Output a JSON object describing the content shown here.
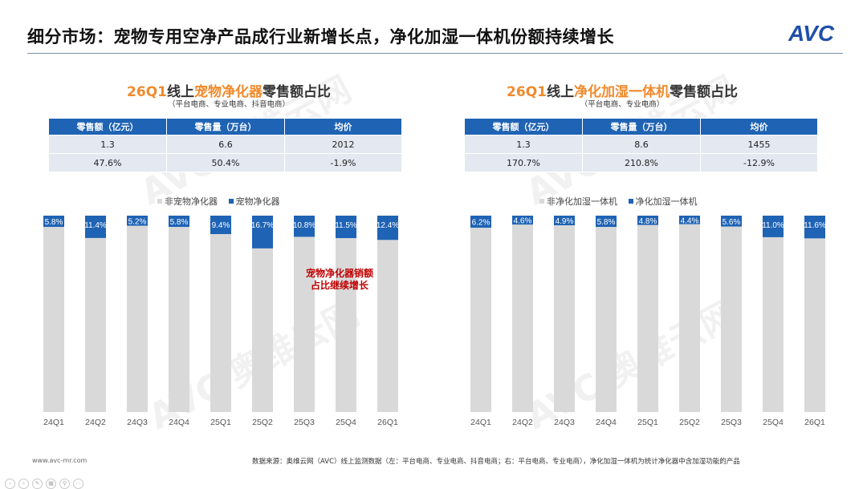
{
  "header": {
    "title": "细分市场：宠物专用空净产品成行业新增长点，净化加湿一体机份额持续增长",
    "logo_text": "AVC"
  },
  "colors": {
    "accent": "#1f63b4",
    "highlight": "#f08a2c",
    "other_bar": "#d9d9d9",
    "annotation": "#c00000"
  },
  "left": {
    "title_period": "26Q1",
    "title_pre": "线上",
    "title_highlight": "宠物净化器",
    "title_post": "零售额占比",
    "subtitle": "（平台电商、专业电商、抖音电商）",
    "table": {
      "headers": [
        "零售额（亿元）",
        "零售量（万台）",
        "均价"
      ],
      "rows": [
        [
          "1.3",
          "6.6",
          "2012"
        ],
        [
          "47.6%",
          "50.4%",
          "-1.9%"
        ]
      ]
    },
    "annotation": [
      "宠物净化器销额",
      "占比继续增长"
    ]
  },
  "right": {
    "title_period": "26Q1",
    "title_pre": "线上",
    "title_highlight": "净化加湿一体机",
    "title_post": "零售额占比",
    "subtitle": "（平台电商、专业电商）",
    "table": {
      "headers": [
        "零售额（亿元）",
        "零售量（万台）",
        "均价"
      ],
      "rows": [
        [
          "1.3",
          "8.6",
          "1455"
        ],
        [
          "170.7%",
          "210.8%",
          "-12.9%"
        ]
      ]
    }
  },
  "chart_data": [
    {
      "type": "bar",
      "stacked": true,
      "categories": [
        "24Q1",
        "24Q2",
        "24Q3",
        "24Q4",
        "25Q1",
        "25Q2",
        "25Q3",
        "25Q4",
        "26Q1"
      ],
      "series": [
        {
          "name": "非宠物净化器",
          "values": [
            94.2,
            88.6,
            94.8,
            94.2,
            90.6,
            83.3,
            89.2,
            88.5,
            87.6
          ]
        },
        {
          "name": "宠物净化器",
          "values": [
            5.8,
            11.4,
            5.2,
            5.8,
            9.4,
            16.7,
            10.8,
            11.5,
            12.4
          ],
          "labels": [
            "5.8%",
            "11.4%",
            "5.2%",
            "5.8%",
            "9.4%",
            "16.7%",
            "10.8%",
            "11.5%",
            "12.4%"
          ]
        }
      ],
      "ylim": [
        0,
        100
      ],
      "legend": "top"
    },
    {
      "type": "bar",
      "stacked": true,
      "categories": [
        "24Q1",
        "24Q2",
        "24Q3",
        "24Q4",
        "25Q1",
        "25Q2",
        "25Q3",
        "25Q4",
        "26Q1"
      ],
      "series": [
        {
          "name": "非净化加湿一体机",
          "values": [
            93.8,
            95.4,
            95.1,
            94.2,
            95.2,
            95.6,
            94.4,
            89.0,
            88.4
          ]
        },
        {
          "name": "净化加湿一体机",
          "values": [
            6.2,
            4.6,
            4.9,
            5.8,
            4.8,
            4.4,
            5.6,
            11.0,
            11.6
          ],
          "labels": [
            "6.2%",
            "4.6%",
            "4.9%",
            "5.8%",
            "4.8%",
            "4.4%",
            "5.6%",
            "11.0%",
            "11.6%"
          ]
        }
      ],
      "ylim": [
        0,
        100
      ],
      "legend": "top"
    }
  ],
  "footer": {
    "website": "www.avc-mr.com",
    "source": "数据来源：奥维云网（AVC）线上监测数据（左：平台电商、专业电商、抖音电商；右：平台电商、专业电商），净化加湿一体机为统计净化器中含加湿功能的产品"
  },
  "watermark": {
    "brand": "AVC",
    "cn": "奥维云网",
    "en": "ALL VIEW CLOUD"
  }
}
